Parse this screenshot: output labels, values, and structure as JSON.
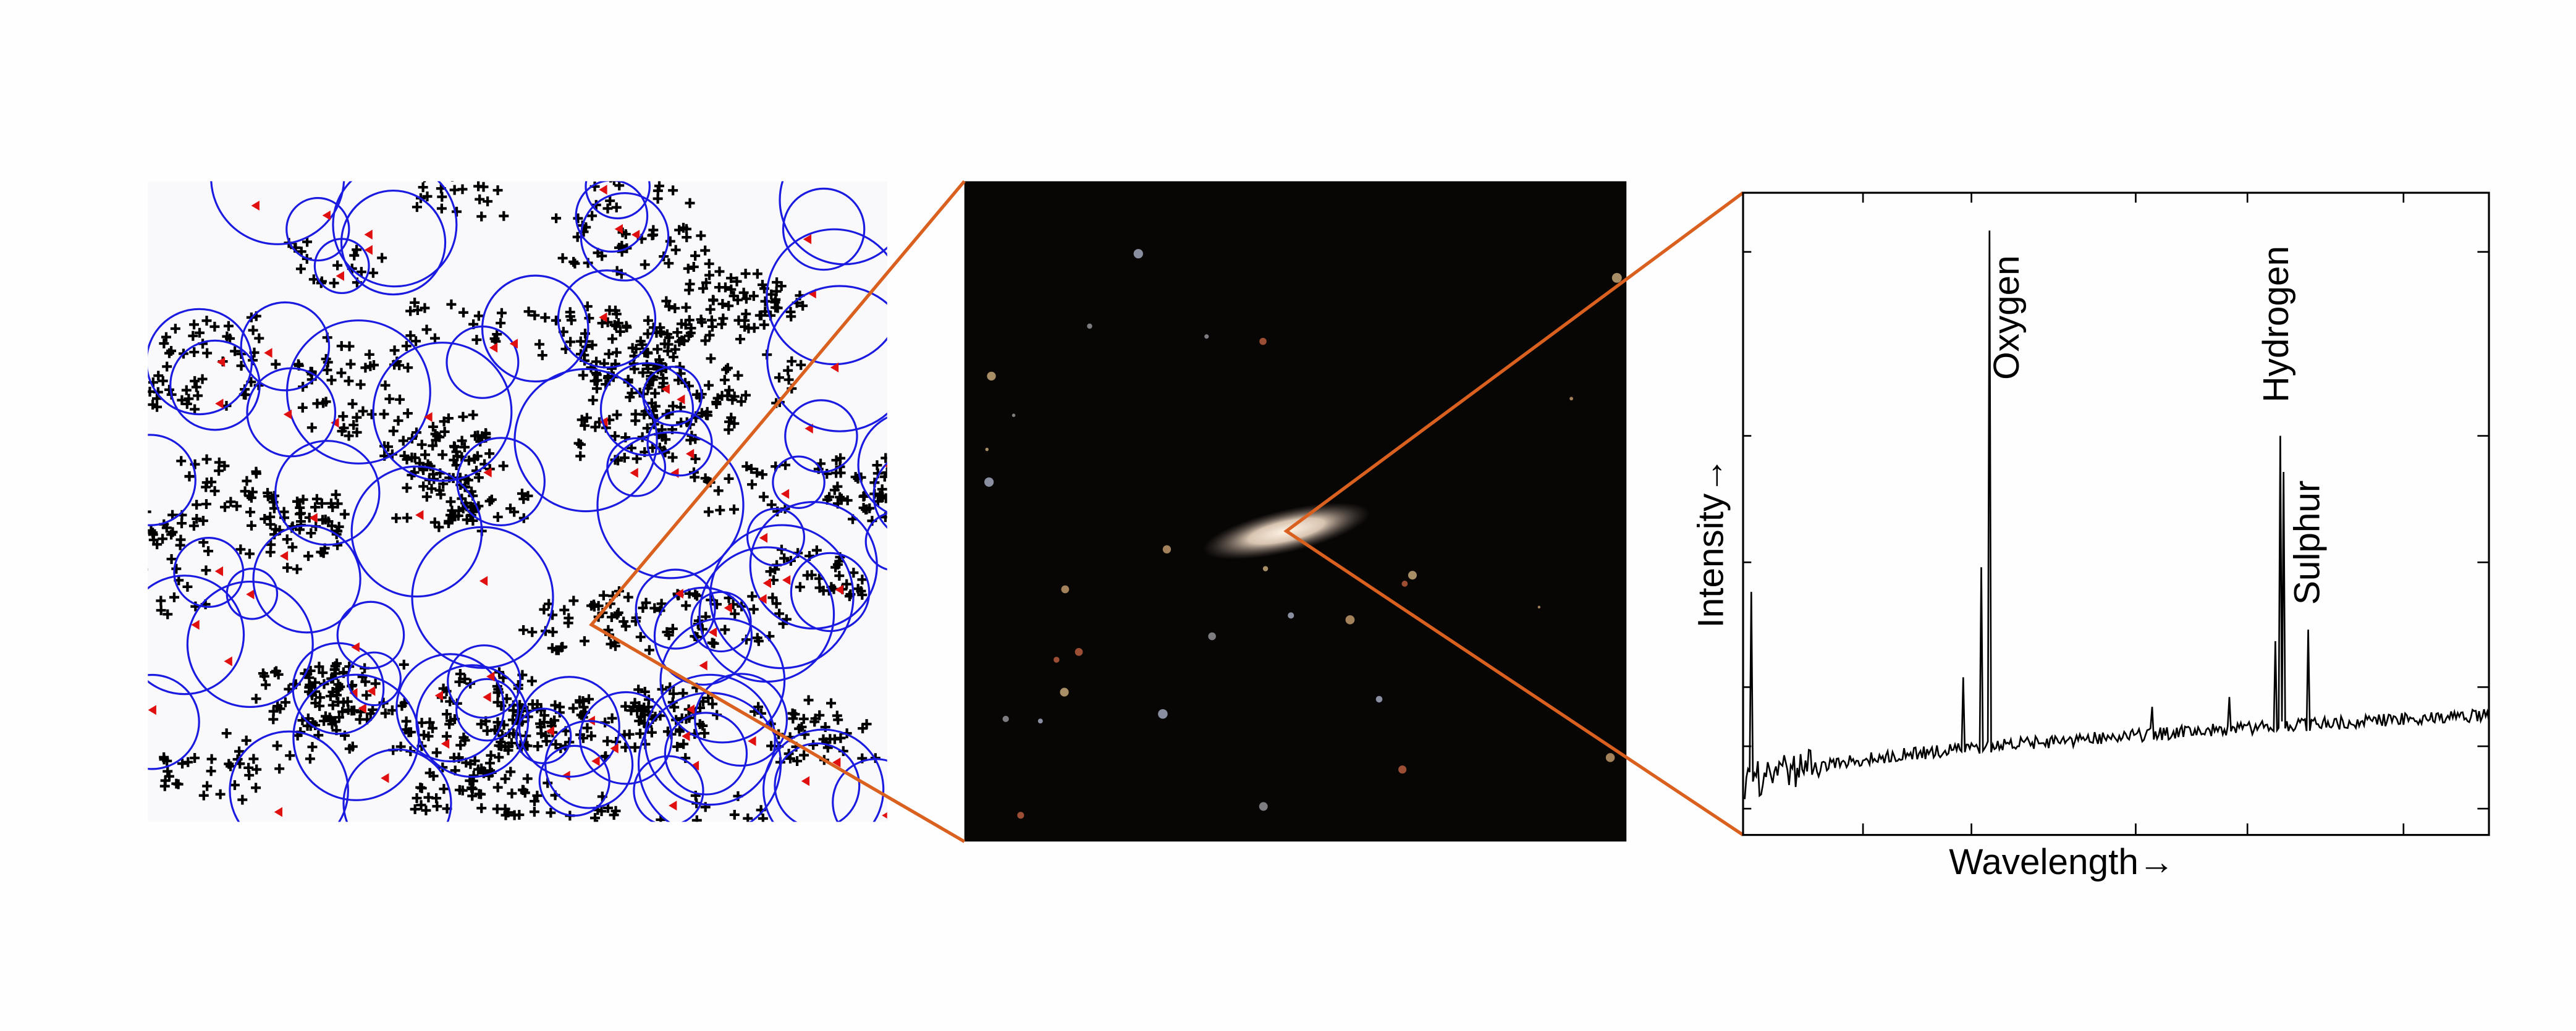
{
  "labels": {
    "y_axis": "Intensity→",
    "x_axis": "Wavelength→",
    "lines": [
      "Oxygen",
      "Hydrogen",
      "Sulphur"
    ]
  }
}
